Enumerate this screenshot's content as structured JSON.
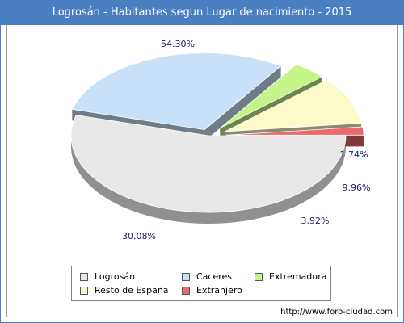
{
  "title": "Logrosán - Habitantes segun Lugar de nacimiento - 2015",
  "source": "http://www.foro-ciudad.com",
  "chart_data": {
    "type": "pie",
    "title": "Logrosán - Habitantes segun Lugar de nacimiento - 2015",
    "categories": [
      "Logrosán",
      "Caceres",
      "Extremadura",
      "Resto de España",
      "Extranjero"
    ],
    "values": [
      54.3,
      30.08,
      3.92,
      9.96,
      1.74
    ],
    "labels": [
      "54.30%",
      "30.08%",
      "3.92%",
      "9.96%",
      "1.74%"
    ],
    "colors": [
      "#e8e8e8",
      "#c9e1f8",
      "#c5f58a",
      "#fbfac8",
      "#e86a6a"
    ],
    "legend_placement": "bottom"
  },
  "legend": [
    {
      "label": "Logrosán",
      "color": "#e8e8e8"
    },
    {
      "label": "Caceres",
      "color": "#c9e1f8"
    },
    {
      "label": "Extremadura",
      "color": "#c5f58a"
    },
    {
      "label": "Resto de España",
      "color": "#fbfac8"
    },
    {
      "label": "Extranjero",
      "color": "#e86a6a"
    }
  ]
}
